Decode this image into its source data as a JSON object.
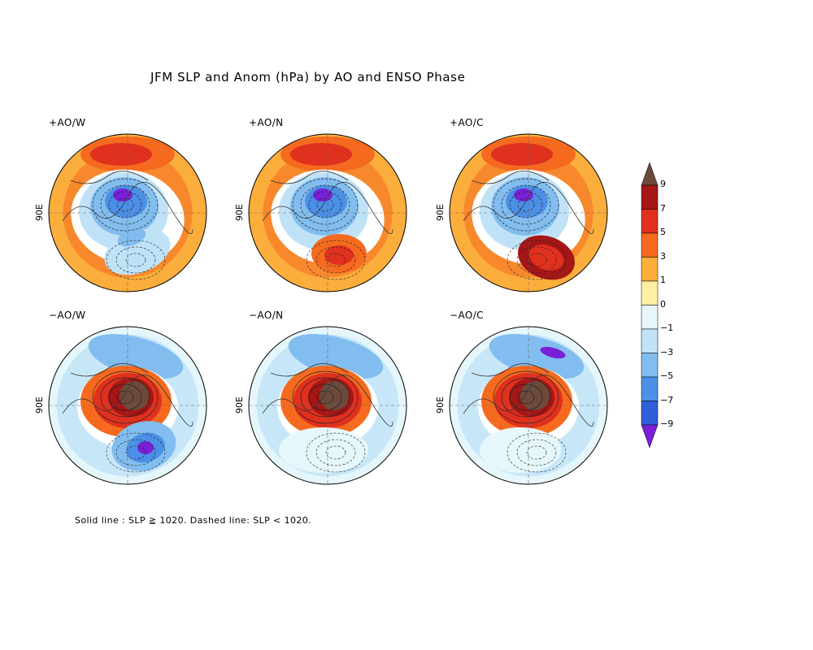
{
  "title": "JFM SLP and Anom (hPa) by AO and ENSO Phase",
  "note": "Solid line : SLP ≧ 1020.  Dashed line: SLP < 1020.",
  "lon_label": "90E",
  "panels": [
    {
      "label": "+AO/W",
      "pattern": "pos",
      "pacific": "warm"
    },
    {
      "label": "+AO/N",
      "pattern": "pos",
      "pacific": "neutral"
    },
    {
      "label": "+AO/C",
      "pattern": "pos",
      "pacific": "cold"
    },
    {
      "label": "−AO/W",
      "pattern": "neg",
      "pacific": "warm"
    },
    {
      "label": "−AO/N",
      "pattern": "neg",
      "pacific": "neutral"
    },
    {
      "label": "−AO/C",
      "pattern": "neg",
      "pacific": "cold"
    }
  ],
  "colorbar": {
    "labels": [
      "9",
      "7",
      "5",
      "3",
      "1",
      "0",
      "−1",
      "−3",
      "−5",
      "−7",
      "−9"
    ],
    "colors": [
      "#6b4a3c",
      "#a51616",
      "#e0301e",
      "#f56a1f",
      "#fbae3c",
      "#fdf0a0",
      "#e6f7fc",
      "#bfe2f7",
      "#82bdef",
      "#4b90e6",
      "#2f5fd9",
      "#7a1fd8"
    ]
  }
}
